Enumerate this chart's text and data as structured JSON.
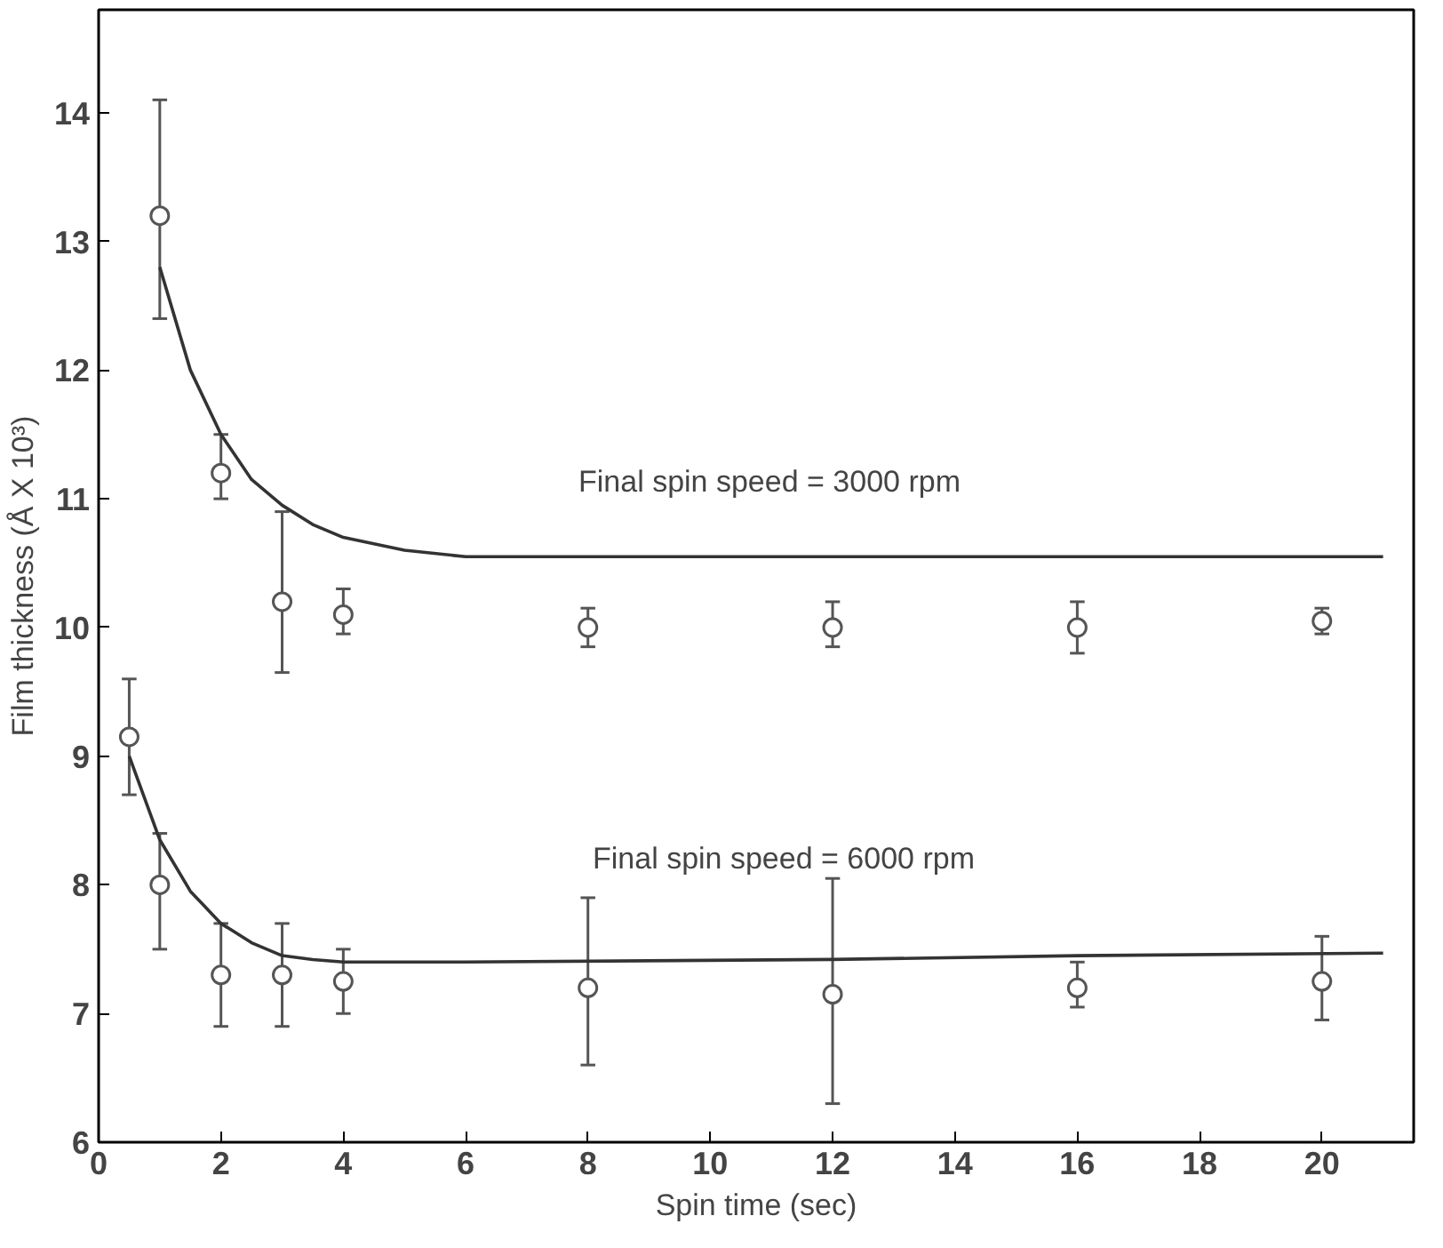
{
  "chart_data": {
    "type": "scatter",
    "xlabel": "Spin time (sec)",
    "ylabel": "Film thickness (Å X 10³)",
    "xlim": [
      0,
      21.5
    ],
    "ylim": [
      6,
      14.8
    ],
    "xticks": [
      0,
      2,
      4,
      6,
      8,
      10,
      12,
      14,
      16,
      18,
      20
    ],
    "yticks": [
      6,
      7,
      8,
      9,
      10,
      11,
      12,
      13,
      14
    ],
    "grid": false,
    "marker": "circle",
    "series": [
      {
        "color": "#555555",
        "x": [
          1,
          2,
          3,
          4,
          8,
          12,
          16,
          20
        ],
        "values": [
          13.2,
          11.2,
          10.2,
          10.1,
          10.0,
          10.0,
          10.0,
          10.05
        ],
        "errors": [
          [
            12.4,
            14.1
          ],
          [
            11.0,
            11.5
          ],
          [
            9.65,
            10.9
          ],
          [
            9.95,
            10.3
          ],
          [
            9.85,
            10.15
          ],
          [
            9.85,
            10.2
          ],
          [
            9.8,
            10.2
          ],
          [
            9.95,
            10.15
          ]
        ]
      },
      {
        "color": "#555555",
        "x": [
          0.5,
          1,
          2,
          3,
          4,
          8,
          12,
          16,
          20
        ],
        "values": [
          9.15,
          8.0,
          7.3,
          7.3,
          7.25,
          7.2,
          7.15,
          7.2,
          7.25
        ],
        "errors": [
          [
            8.7,
            9.6
          ],
          [
            7.5,
            8.4
          ],
          [
            6.9,
            7.7
          ],
          [
            6.9,
            7.7
          ],
          [
            7.0,
            7.5
          ],
          [
            6.6,
            7.9
          ],
          [
            6.3,
            8.05
          ],
          [
            7.05,
            7.4
          ],
          [
            6.95,
            7.6
          ]
        ]
      },
      {
        "type": "line",
        "marker": "none",
        "color": "#333333",
        "x": [
          1,
          1.5,
          2,
          2.5,
          3,
          3.5,
          4,
          5,
          6,
          8,
          12,
          16,
          21
        ],
        "values": [
          12.8,
          12.0,
          11.5,
          11.15,
          10.95,
          10.8,
          10.7,
          10.6,
          10.55,
          10.55,
          10.55,
          10.55,
          10.55
        ]
      },
      {
        "type": "line",
        "marker": "none",
        "color": "#333333",
        "x": [
          0.5,
          1,
          1.5,
          2,
          2.5,
          3,
          3.5,
          4,
          6,
          12,
          16,
          21
        ],
        "values": [
          9.0,
          8.35,
          7.95,
          7.7,
          7.55,
          7.45,
          7.42,
          7.4,
          7.4,
          7.42,
          7.45,
          7.47
        ]
      }
    ],
    "annotations": [
      "Final spin speed = 3000 rpm",
      "Final spin speed = 6000 rpm"
    ]
  }
}
